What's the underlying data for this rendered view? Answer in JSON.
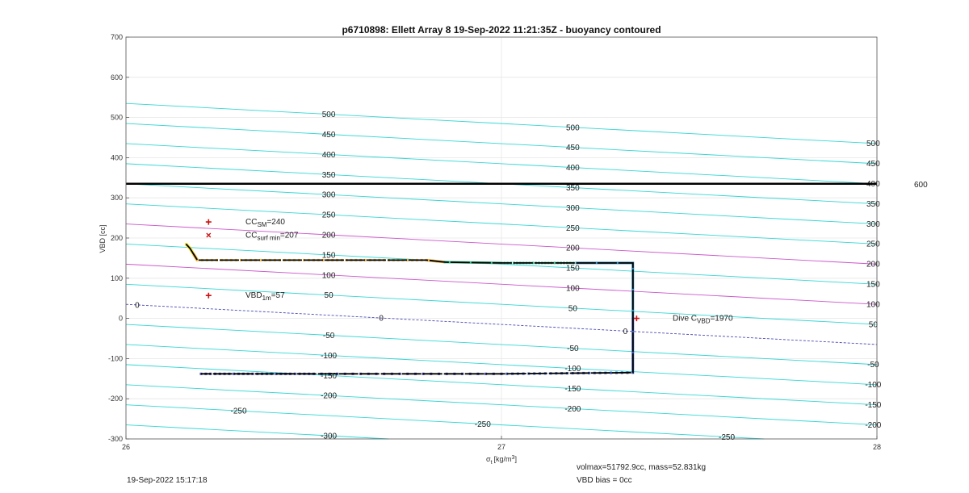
{
  "chart_data": {
    "type": "line",
    "title": "p6710898: Ellett Array 8 19-Sep-2022 11:21:35Z - buoyancy contoured",
    "xlabel_base": "σ",
    "xlabel_sub": "t",
    "xlabel_unit": "[kg/m",
    "xlabel_sup": "3",
    "xlabel_close": "]",
    "ylabel": "VBD [cc]",
    "xlim": [
      26,
      28
    ],
    "ylim": [
      -300,
      700
    ],
    "xticks": [
      "26",
      "27",
      "28"
    ],
    "yticks": [
      "-300",
      "-200",
      "-100",
      "0",
      "100",
      "200",
      "300",
      "400",
      "500",
      "600",
      "700"
    ],
    "grid": true,
    "contours": {
      "left_intercepts_at_x26": [
        -265,
        -215,
        -165,
        -115,
        -65,
        -15,
        35,
        85,
        135,
        185,
        235,
        285,
        335,
        385,
        435,
        485,
        535
      ],
      "values": [
        -300,
        -250,
        -200,
        -150,
        -100,
        -50,
        0,
        50,
        100,
        150,
        200,
        250,
        300,
        350,
        400,
        450,
        500
      ],
      "slope_per_sigma": -50,
      "colors": {
        "default": "#33d6d6",
        "zero": "#4a4ab8",
        "highlight": "#cc55cc"
      },
      "highlight_values": [
        100,
        200
      ],
      "labels_col1": [
        {
          "x": 26.54,
          "vals": [
            "500",
            "450",
            "400",
            "350",
            "300",
            "250",
            "200",
            "150",
            "100",
            "50",
            "-50",
            "-100",
            "-150",
            "-200",
            "-300"
          ]
        }
      ],
      "labels_col2": [
        {
          "x": 27.19,
          "vals": [
            "500",
            "450",
            "400",
            "350",
            "300",
            "250",
            "200",
            "150",
            "100",
            "50",
            "-50",
            "-100",
            "-150",
            "-200"
          ]
        }
      ],
      "labels_col3": [
        {
          "x": 27.99,
          "vals": [
            "500",
            "450",
            "400",
            "350",
            "300",
            "250",
            "200",
            "150",
            "100",
            "50",
            "-50",
            "-100",
            "-150",
            "-200"
          ]
        }
      ],
      "zero_labels": [
        "0",
        "0",
        "0"
      ],
      "low_labels": [
        "-250",
        "-250",
        "-250"
      ]
    },
    "horizontal_line": {
      "y": 335,
      "label": "600"
    },
    "dive_trace": [
      [
        26.16,
        185
      ],
      [
        26.17,
        175
      ],
      [
        26.18,
        160
      ],
      [
        26.19,
        145
      ],
      [
        26.5,
        145
      ],
      [
        26.8,
        145
      ],
      [
        26.85,
        140
      ],
      [
        27.0,
        138
      ],
      [
        27.2,
        138
      ],
      [
        27.35,
        138
      ],
      [
        27.35,
        0
      ],
      [
        27.35,
        -135
      ],
      [
        27.0,
        -138
      ],
      [
        26.5,
        -138
      ],
      [
        26.2,
        -138
      ]
    ],
    "trace_gradient": [
      "#f5e642",
      "#f7c24a",
      "#e9b24b",
      "#3fbf8f",
      "#2e8bb8",
      "#3b5bb8",
      "#4040a0"
    ],
    "markers": [
      {
        "kind": "plus",
        "x": 26.22,
        "y": 240,
        "color": "#cc1111"
      },
      {
        "kind": "cross",
        "x": 26.22,
        "y": 207,
        "color": "#cc1111"
      },
      {
        "kind": "plus",
        "x": 26.22,
        "y": 57,
        "color": "#cc1111"
      },
      {
        "kind": "plus",
        "x": 27.36,
        "y": 0,
        "color": "#cc1111"
      }
    ],
    "annotations": {
      "cc_sm": {
        "base": "CC",
        "sub": "SM",
        "rest": "=240"
      },
      "cc_surf_min": {
        "base": "CC",
        "sub": "surf min",
        "rest": "=207"
      },
      "vbd_1m": {
        "base": "VBD",
        "sub": "1m",
        "rest": "=57"
      },
      "dive_cvbd": {
        "base": "Dive C",
        "sub": "VBD",
        "rest": "=1970"
      }
    }
  },
  "footer": {
    "timestamp": "19-Sep-2022 15:17:18",
    "volmax": "volmax=51792.9cc, mass=52.831kg",
    "vbd_bias": "VBD bias = 0cc"
  }
}
